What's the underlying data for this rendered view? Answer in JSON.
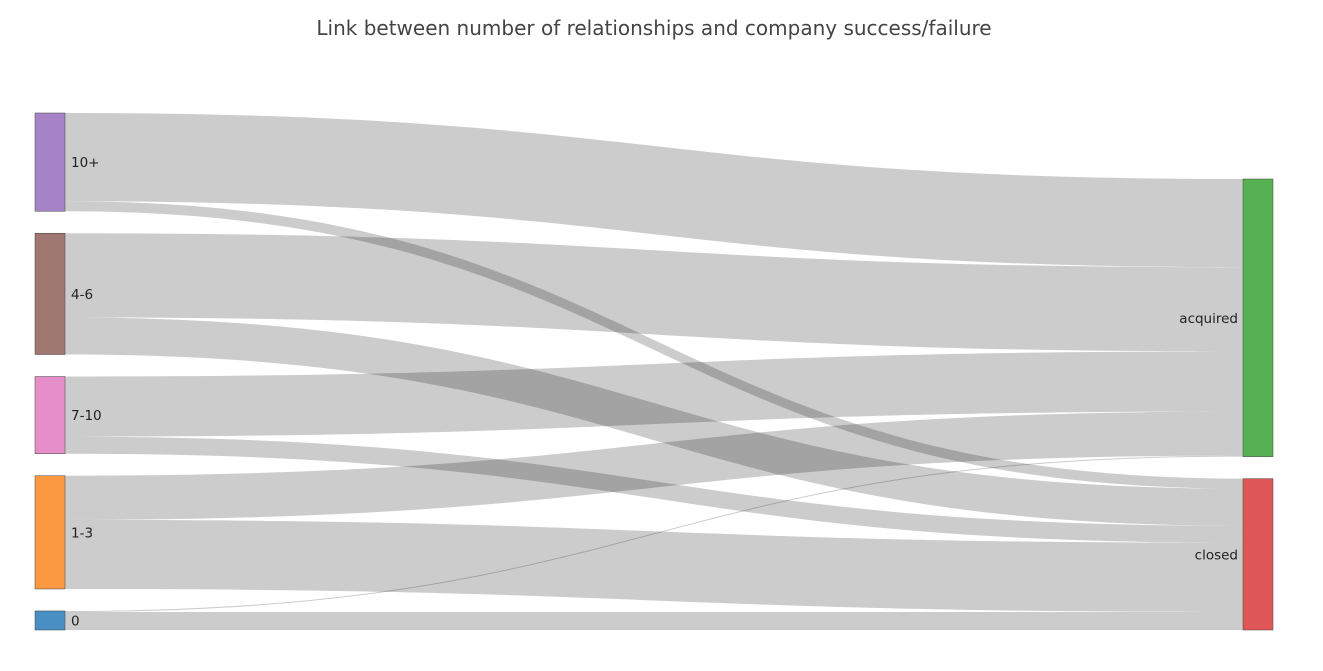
{
  "chart_data": {
    "type": "sankey",
    "title": "Link between number of relationships and company success/failure",
    "nodes": [
      {
        "name": "10+",
        "color": "#a683c6"
      },
      {
        "name": "4-6",
        "color": "#a07872"
      },
      {
        "name": "7-10",
        "color": "#e68ec9"
      },
      {
        "name": "1-3",
        "color": "#fb9842"
      },
      {
        "name": "0",
        "color": "#4a8fc3"
      },
      {
        "name": "acquired",
        "color": "#55b152"
      },
      {
        "name": "closed",
        "color": "#df5656"
      }
    ],
    "links": [
      {
        "source": "10+",
        "target": "acquired",
        "value": 88
      },
      {
        "source": "10+",
        "target": "closed",
        "value": 10
      },
      {
        "source": "4-6",
        "target": "acquired",
        "value": 84
      },
      {
        "source": "4-6",
        "target": "closed",
        "value": 37
      },
      {
        "source": "7-10",
        "target": "acquired",
        "value": 60
      },
      {
        "source": "7-10",
        "target": "closed",
        "value": 17
      },
      {
        "source": "1-3",
        "target": "acquired",
        "value": 44
      },
      {
        "source": "1-3",
        "target": "closed",
        "value": 69
      },
      {
        "source": "0",
        "target": "acquired",
        "value": 1
      },
      {
        "source": "0",
        "target": "closed",
        "value": 18
      }
    ]
  }
}
